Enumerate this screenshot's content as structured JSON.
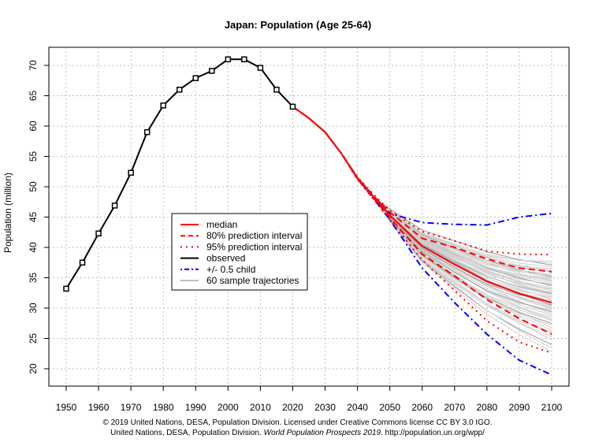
{
  "chart_data": {
    "type": "line",
    "title": "Japan: Population (Age 25-64)",
    "xlabel": "",
    "ylabel": "Population (million)",
    "xlim": [
      1950,
      2100
    ],
    "ylim": [
      20,
      70
    ],
    "x_ticks": [
      1950,
      1960,
      1970,
      1980,
      1990,
      2000,
      2010,
      2020,
      2030,
      2040,
      2050,
      2060,
      2070,
      2080,
      2090,
      2100
    ],
    "y_ticks": [
      20,
      25,
      30,
      35,
      40,
      45,
      50,
      55,
      60,
      65,
      70
    ],
    "grid": true,
    "legend_position": "center-left",
    "legend": [
      "median",
      "80% prediction interval",
      "95% prediction interval",
      "observed",
      "+/- 0.5 child",
      "60 sample trajectories"
    ],
    "observed": {
      "x": [
        1950,
        1955,
        1960,
        1965,
        1970,
        1975,
        1980,
        1985,
        1990,
        1995,
        2000,
        2005,
        2010,
        2015,
        2020
      ],
      "y": [
        33.2,
        37.5,
        42.3,
        46.9,
        52.3,
        59.0,
        63.4,
        66.0,
        67.9,
        69.1,
        71.0,
        71.0,
        69.6,
        66.0,
        63.2
      ]
    },
    "projection_x": [
      2020,
      2025,
      2030,
      2035,
      2040,
      2045,
      2050,
      2060,
      2070,
      2080,
      2090,
      2100
    ],
    "median": [
      63.2,
      61.3,
      59.0,
      55.5,
      51.4,
      48.3,
      45.3,
      40.2,
      37.2,
      34.4,
      32.4,
      30.9
    ],
    "pi80_upper": [
      63.2,
      61.3,
      59.0,
      55.5,
      51.5,
      48.5,
      45.8,
      41.5,
      40.0,
      38.1,
      36.6,
      36.0
    ],
    "pi80_lower": [
      63.2,
      61.3,
      59.0,
      55.5,
      51.3,
      48.1,
      44.9,
      38.9,
      35.3,
      31.4,
      28.3,
      25.7
    ],
    "pi95_upper": [
      63.2,
      61.3,
      59.0,
      55.5,
      51.6,
      48.7,
      46.1,
      42.6,
      41.1,
      39.4,
      38.9,
      38.8
    ],
    "pi95_lower": [
      63.2,
      61.3,
      59.0,
      55.5,
      51.2,
      47.9,
      44.6,
      37.9,
      32.9,
      27.9,
      24.4,
      22.6
    ],
    "plus_half_child": [
      63.2,
      61.3,
      59.0,
      55.5,
      51.5,
      48.4,
      45.6,
      44.1,
      43.8,
      43.7,
      45.0,
      45.6
    ],
    "minus_half_child": [
      63.2,
      61.3,
      59.0,
      55.5,
      51.3,
      48.0,
      44.6,
      36.6,
      30.9,
      25.7,
      21.4,
      19.0
    ],
    "sample_trajectories_2100": [
      24.0,
      24.8,
      25.3,
      25.9,
      26.4,
      26.8,
      27.2,
      27.5,
      27.9,
      28.2,
      28.5,
      28.8,
      29.0,
      29.3,
      29.5,
      29.8,
      30.0,
      30.2,
      30.4,
      30.6,
      30.8,
      31.0,
      31.2,
      31.4,
      31.6,
      31.8,
      32.0,
      32.2,
      32.4,
      32.6,
      32.8,
      33.0,
      33.2,
      33.4,
      33.6,
      33.8,
      34.0,
      34.2,
      34.4,
      34.6,
      34.8,
      35.0,
      35.2,
      35.4,
      35.6,
      35.9,
      36.2,
      36.5,
      36.8,
      37.1,
      37.4,
      37.7,
      22.8,
      23.4,
      26.1,
      28.0,
      30.5,
      32.5,
      34.9,
      36.0
    ],
    "colors": {
      "median": "#ff0000",
      "observed": "#000000",
      "child": "#0000ff",
      "trajectory": "#bebebe",
      "grid": "#bebebe"
    }
  },
  "footer": {
    "line1": "© 2019 United Nations, DESA, Population Division. Licensed under Creative Commons license CC BY 3.0 IGO.",
    "line2_a": "United Nations, DESA, Population Division. ",
    "line2_b": "World Population Prospects 2019",
    "line2_c": ". http://population.un.org/wpp/"
  }
}
